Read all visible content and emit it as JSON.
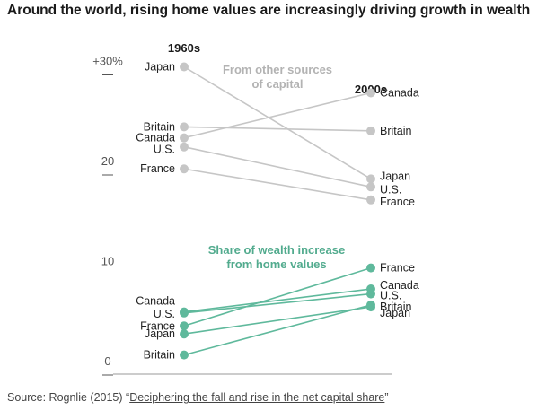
{
  "title": "Around the world, rising home values are increasingly driving growth in wealth",
  "source": {
    "prefix": "Source: Rognlie (2015) “",
    "link_text": "Deciphering the fall and rise in the net capital share",
    "suffix": "”"
  },
  "chart_data": {
    "type": "line",
    "subtype": "slope",
    "x_categories": [
      "1960s",
      "2000s"
    ],
    "ylim": [
      0,
      31
    ],
    "y_ticks": [
      {
        "value": 30,
        "label": "+30%"
      },
      {
        "value": 20,
        "label": "20"
      },
      {
        "value": 10,
        "label": "10"
      },
      {
        "value": 0,
        "label": "0"
      }
    ],
    "colors": {
      "other": "#c6c6c6",
      "home": "#5fb99c",
      "home_text": "#52ab8e",
      "heading_other": "#b3b3b3"
    },
    "panels": [
      {
        "id": "other",
        "annotation": [
          "From other sources",
          "of capital"
        ],
        "series": [
          {
            "name": "Japan",
            "values": [
              30,
              18.8
            ]
          },
          {
            "name": "Britain",
            "values": [
              24.0,
              23.6
            ]
          },
          {
            "name": "Canada",
            "values": [
              22.9,
              27.4
            ]
          },
          {
            "name": "U.S.",
            "values": [
              22.0,
              18.0
            ]
          },
          {
            "name": "France",
            "values": [
              19.8,
              16.7
            ]
          }
        ]
      },
      {
        "id": "home",
        "annotation": [
          "Share of wealth increase",
          "from home values"
        ],
        "series": [
          {
            "name": "Canada",
            "values": [
              5.5,
              7.8
            ]
          },
          {
            "name": "U.S.",
            "values": [
              5.4,
              7.3
            ]
          },
          {
            "name": "France",
            "values": [
              4.1,
              9.9
            ]
          },
          {
            "name": "Japan",
            "values": [
              3.3,
              6.0
            ]
          },
          {
            "name": "Britain",
            "values": [
              1.2,
              6.2
            ]
          }
        ]
      }
    ]
  }
}
